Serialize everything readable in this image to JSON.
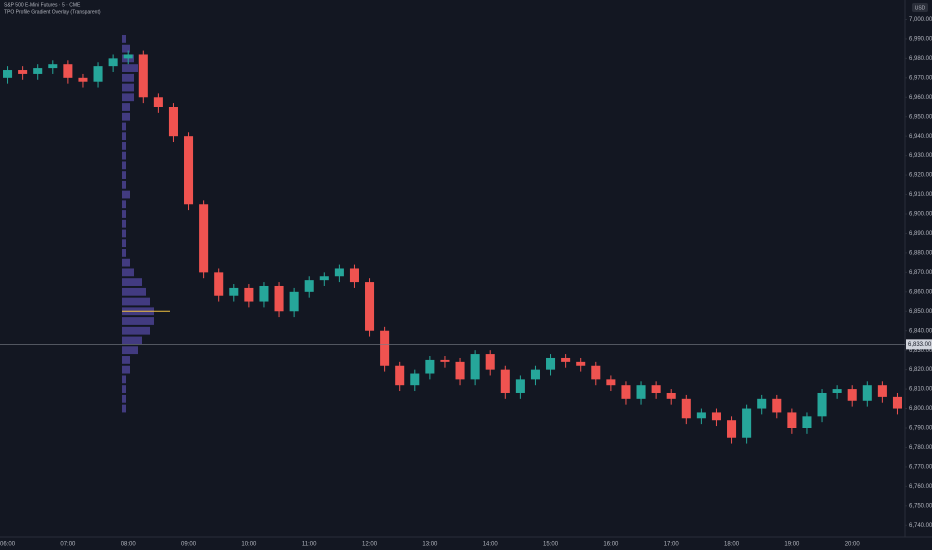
{
  "chart_data": {
    "type": "candlestick",
    "title": "S&P 500 E-Mini Futures · 5 · CME",
    "subtitle": "TPO Profile Gradient Overlay (Transparent)",
    "currency": "USD",
    "categories": [
      "06:00",
      null,
      null,
      null,
      "07:00",
      null,
      null,
      null,
      "08:00",
      null,
      null,
      null,
      "09:00",
      null,
      null,
      null,
      "10:00",
      null,
      null,
      null,
      "11:00",
      null,
      null,
      null,
      "12:00",
      null,
      null,
      null,
      "13:00",
      null,
      null,
      null,
      "14:00",
      null,
      null,
      null,
      "15:00",
      null,
      null,
      null,
      "16:00",
      null,
      null,
      null,
      "17:00",
      null,
      null,
      null,
      "18:00",
      null,
      null,
      null,
      "19:00",
      null,
      null,
      null,
      "20:00",
      null,
      null,
      null
    ],
    "open": [
      6970,
      6974,
      6972,
      6975,
      6977,
      6970,
      6968,
      6976,
      6980,
      6982,
      6960,
      6955,
      6940,
      6905,
      6870,
      6858,
      6862,
      6855,
      6863,
      6850,
      6860,
      6866,
      6868,
      6872,
      6865,
      6840,
      6822,
      6812,
      6818,
      6825,
      6824,
      6815,
      6828,
      6820,
      6808,
      6815,
      6820,
      6826,
      6824,
      6822,
      6815,
      6812,
      6805,
      6812,
      6808,
      6805,
      6795,
      6798,
      6794,
      6785,
      6800,
      6805,
      6798,
      6790,
      6796,
      6808,
      6810,
      6804,
      6812,
      6806
    ],
    "high": [
      6976,
      6976,
      6977,
      6979,
      6979,
      6972,
      6978,
      6982,
      6984,
      6984,
      6962,
      6957,
      6942,
      6907,
      6872,
      6864,
      6864,
      6865,
      6865,
      6862,
      6868,
      6870,
      6874,
      6874,
      6867,
      6842,
      6824,
      6820,
      6827,
      6827,
      6826,
      6830,
      6830,
      6822,
      6817,
      6822,
      6828,
      6828,
      6826,
      6824,
      6817,
      6814,
      6814,
      6814,
      6810,
      6807,
      6800,
      6800,
      6796,
      6802,
      6807,
      6807,
      6800,
      6798,
      6810,
      6812,
      6812,
      6814,
      6814,
      6808
    ],
    "low": [
      6967,
      6969,
      6969,
      6972,
      6967,
      6965,
      6965,
      6973,
      6977,
      6957,
      6952,
      6937,
      6902,
      6867,
      6855,
      6855,
      6852,
      6852,
      6847,
      6847,
      6857,
      6863,
      6865,
      6862,
      6837,
      6819,
      6809,
      6809,
      6815,
      6821,
      6812,
      6812,
      6817,
      6805,
      6805,
      6812,
      6817,
      6821,
      6819,
      6812,
      6809,
      6802,
      6802,
      6805,
      6802,
      6792,
      6792,
      6791,
      6782,
      6782,
      6797,
      6795,
      6787,
      6787,
      6793,
      6805,
      6801,
      6801,
      6803,
      6797
    ],
    "close": [
      6974,
      6972,
      6975,
      6977,
      6970,
      6968,
      6976,
      6980,
      6982,
      6960,
      6955,
      6940,
      6905,
      6870,
      6858,
      6862,
      6855,
      6863,
      6850,
      6860,
      6866,
      6868,
      6872,
      6865,
      6840,
      6822,
      6812,
      6818,
      6825,
      6824,
      6815,
      6828,
      6820,
      6808,
      6815,
      6820,
      6826,
      6824,
      6822,
      6815,
      6812,
      6805,
      6812,
      6808,
      6805,
      6795,
      6798,
      6794,
      6785,
      6800,
      6805,
      6798,
      6790,
      6796,
      6808,
      6810,
      6804,
      6812,
      6806,
      6800
    ],
    "up_color": "#26a69a",
    "down_color": "#ef5350",
    "ylim": [
      6735,
      7010
    ],
    "yticks": [
      {
        "value": 6740,
        "label": "6,740.00"
      },
      {
        "value": 6750,
        "label": "6,750.00"
      },
      {
        "value": 6760,
        "label": "6,760.00"
      },
      {
        "value": 6770,
        "label": "6,770.00"
      },
      {
        "value": 6780,
        "label": "6,780.00"
      },
      {
        "value": 6790,
        "label": "6,790.00"
      },
      {
        "value": 6800,
        "label": "6,800.00"
      },
      {
        "value": 6810,
        "label": "6,810.00"
      },
      {
        "value": 6820,
        "label": "6,820.00"
      },
      {
        "value": 6830,
        "label": "6,830.00"
      },
      {
        "value": 6840,
        "label": "6,840.00"
      },
      {
        "value": 6850,
        "label": "6,850.00"
      },
      {
        "value": 6860,
        "label": "6,860.00"
      },
      {
        "value": 6870,
        "label": "6,870.00"
      },
      {
        "value": 6880,
        "label": "6,880.00"
      },
      {
        "value": 6890,
        "label": "6,890.00"
      },
      {
        "value": 6900,
        "label": "6,900.00"
      },
      {
        "value": 6910,
        "label": "6,910.00"
      },
      {
        "value": 6920,
        "label": "6,920.00"
      },
      {
        "value": 6930,
        "label": "6,930.00"
      },
      {
        "value": 6940,
        "label": "6,940.00"
      },
      {
        "value": 6950,
        "label": "6,950.00"
      },
      {
        "value": 6960,
        "label": "6,960.00"
      },
      {
        "value": 6970,
        "label": "6,970.00"
      },
      {
        "value": 6980,
        "label": "6,980.00"
      },
      {
        "value": 6990,
        "label": "6,990.00"
      },
      {
        "value": 7000,
        "label": "7,000.00"
      }
    ],
    "price_line": {
      "value": 6833,
      "label": "6,833.00"
    },
    "profile": {
      "color": "#6a5acd",
      "poc_color": "#f0c040",
      "poc": 6850,
      "levels": [
        6990,
        6985,
        6980,
        6975,
        6970,
        6965,
        6960,
        6955,
        6950,
        6945,
        6940,
        6935,
        6930,
        6925,
        6920,
        6915,
        6910,
        6905,
        6900,
        6895,
        6890,
        6885,
        6880,
        6875,
        6870,
        6865,
        6860,
        6855,
        6850,
        6845,
        6840,
        6835,
        6830,
        6825,
        6820,
        6815,
        6810,
        6805,
        6800
      ],
      "counts": [
        1,
        2,
        3,
        4,
        3,
        3,
        3,
        2,
        2,
        1,
        1,
        1,
        1,
        1,
        1,
        1,
        2,
        1,
        1,
        1,
        1,
        1,
        1,
        2,
        3,
        5,
        6,
        7,
        8,
        8,
        7,
        5,
        4,
        2,
        2,
        1,
        1,
        1,
        1
      ]
    }
  }
}
